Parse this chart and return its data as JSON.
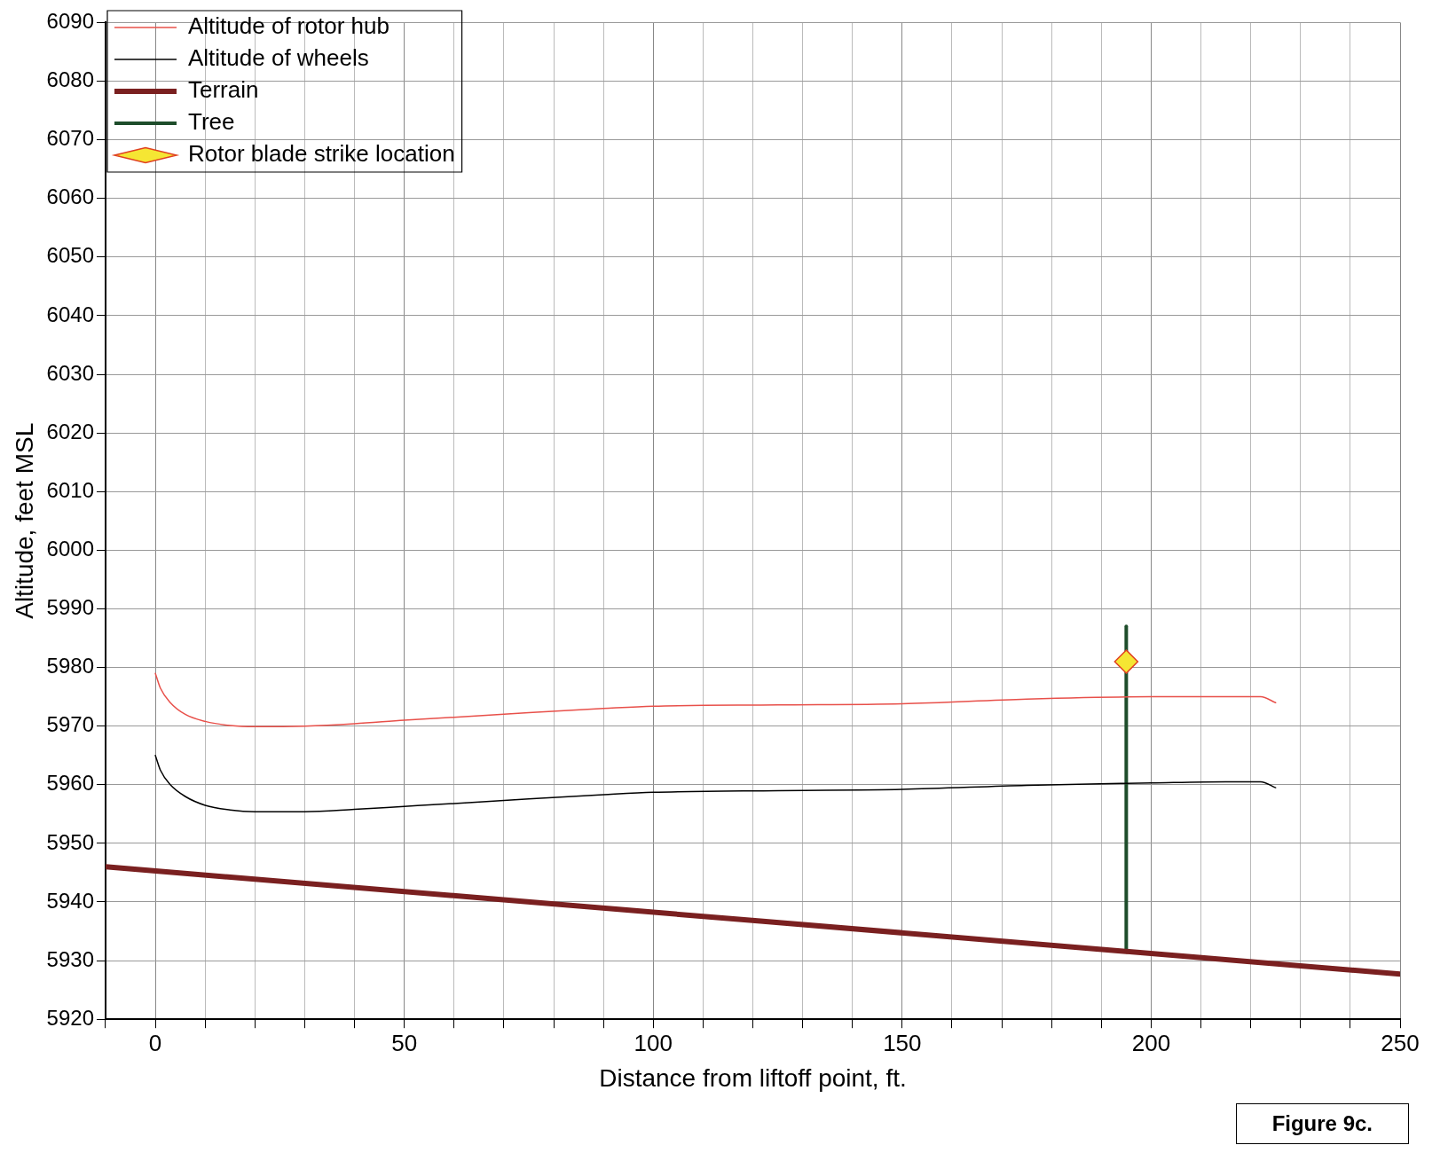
{
  "chart_data": {
    "type": "line",
    "xlabel": "Distance from liftoff point, ft.",
    "ylabel": "Altitude, feet MSL",
    "xlim": [
      -10,
      250
    ],
    "xticks": [
      {
        "value": -10,
        "label": null
      },
      0,
      {
        "value": 10,
        "label": null
      },
      {
        "value": 20,
        "label": null
      },
      {
        "value": 30,
        "label": null
      },
      {
        "value": 40,
        "label": null
      },
      50,
      {
        "value": 60,
        "label": null
      },
      {
        "value": 70,
        "label": null
      },
      {
        "value": 80,
        "label": null
      },
      {
        "value": 90,
        "label": null
      },
      100,
      {
        "value": 110,
        "label": null
      },
      {
        "value": 120,
        "label": null
      },
      {
        "value": 130,
        "label": null
      },
      {
        "value": 140,
        "label": null
      },
      150,
      {
        "value": 160,
        "label": null
      },
      {
        "value": 170,
        "label": null
      },
      {
        "value": 180,
        "label": null
      },
      {
        "value": 190,
        "label": null
      },
      200,
      {
        "value": 210,
        "label": null
      },
      {
        "value": 220,
        "label": null
      },
      {
        "value": 230,
        "label": null
      },
      {
        "value": 240,
        "label": null
      },
      250
    ],
    "ylim": [
      5920,
      6090
    ],
    "yticks": [
      5920,
      5930,
      5940,
      5950,
      5960,
      5970,
      5980,
      5990,
      6000,
      6010,
      6020,
      6030,
      6040,
      6050,
      6060,
      6070,
      6080,
      6090
    ],
    "grid": true,
    "legend": "top left",
    "marker": "none",
    "series": [
      {
        "name": "Altitude of rotor hub",
        "color": "#e8504a",
        "x": [
          0,
          1,
          3,
          6,
          10,
          15,
          20,
          30,
          40,
          50,
          60,
          75,
          90,
          100,
          125,
          150,
          175,
          200,
          215,
          222,
          225
        ],
        "values": [
          5979,
          5976.5,
          5974,
          5972,
          5970.8,
          5970.1,
          5969.9,
          5970,
          5970.4,
          5971,
          5971.5,
          5972.3,
          5973,
          5973.4,
          5973.6,
          5973.8,
          5974.6,
          5975,
          5975,
          5975,
          5974
        ]
      },
      {
        "name": "Altitude of wheels",
        "color": "#000000",
        "x": [
          0,
          1,
          3,
          6,
          10,
          15,
          20,
          30,
          40,
          50,
          60,
          75,
          90,
          100,
          125,
          150,
          175,
          200,
          215,
          222,
          225
        ],
        "values": [
          5965,
          5962.5,
          5960,
          5958,
          5956.5,
          5955.7,
          5955.4,
          5955.4,
          5955.8,
          5956.3,
          5956.8,
          5957.6,
          5958.3,
          5958.7,
          5959,
          5959.2,
          5959.9,
          5960.3,
          5960.5,
          5960.5,
          5959.5
        ]
      },
      {
        "name": "Terrain",
        "color": "#7a2020",
        "x": [
          -10,
          250
        ],
        "values": [
          5946,
          5927.7
        ]
      },
      {
        "name": "Tree",
        "color": "#1e4d2b",
        "x": [
          195,
          195
        ],
        "values": [
          5931.5,
          5987
        ]
      },
      {
        "name": "Rotor blade strike location",
        "type": "scatter",
        "color": "#f5e633",
        "marker": "diamond",
        "x": [
          195
        ],
        "values": [
          5981
        ]
      }
    ],
    "annotations": [
      "Figure 9c."
    ]
  }
}
